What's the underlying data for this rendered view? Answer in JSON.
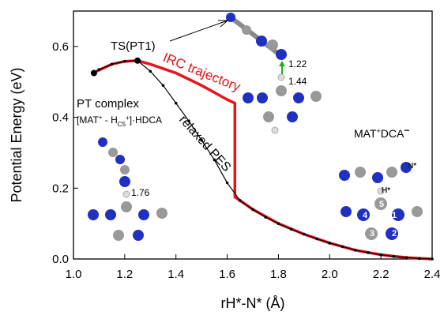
{
  "chart_data": {
    "type": "line",
    "x_label": "rH*-N* (Å)",
    "y_label": "Potential Energy (eV)",
    "xlim": [
      1.0,
      2.4
    ],
    "ylim": [
      0,
      0.7
    ],
    "xticks": [
      {
        "value": 1,
        "label": "1.0"
      },
      {
        "value": 1.2,
        "label": "1.2"
      },
      {
        "value": 1.4,
        "label": "1.4"
      },
      {
        "value": 1.6,
        "label": "1.6"
      },
      {
        "value": 1.8,
        "label": "1.8"
      },
      {
        "value": 2,
        "label": "2.0"
      },
      {
        "value": 2.2,
        "label": "2.2"
      },
      {
        "value": 2.4,
        "label": "2.4"
      }
    ],
    "yticks": [
      {
        "value": 0,
        "label": "0.0"
      },
      0.2,
      0.4,
      0.6
    ],
    "series": [
      {
        "name": "IRC trajectory",
        "color": "#e8141c",
        "markers": false,
        "x": [
          1.09,
          1.15,
          1.2,
          1.25,
          1.3,
          1.4,
          1.5,
          1.6,
          1.63,
          1.63,
          1.65,
          1.7,
          1.8,
          1.9,
          2.0,
          2.1,
          2.2,
          2.3,
          2.4
        ],
        "values": [
          0.53,
          0.55,
          0.558,
          0.56,
          0.55,
          0.525,
          0.49,
          0.45,
          0.44,
          0.175,
          0.165,
          0.14,
          0.1,
          0.07,
          0.045,
          0.025,
          0.012,
          0.004,
          0.0
        ]
      },
      {
        "name": "relaxed PES",
        "color": "#000000",
        "markers": true,
        "x": [
          1.08,
          1.1,
          1.15,
          1.2,
          1.25,
          1.3,
          1.35,
          1.4,
          1.45,
          1.5,
          1.55,
          1.6,
          1.65,
          1.7,
          1.75,
          1.8,
          1.85,
          1.9,
          1.95,
          2.0,
          2.05,
          2.1,
          2.15,
          2.2,
          2.25,
          2.3,
          2.35,
          2.4
        ],
        "values": [
          0.525,
          0.535,
          0.55,
          0.558,
          0.56,
          0.53,
          0.49,
          0.44,
          0.39,
          0.335,
          0.28,
          0.215,
          0.165,
          0.14,
          0.118,
          0.1,
          0.084,
          0.07,
          0.057,
          0.045,
          0.035,
          0.025,
          0.018,
          0.012,
          0.007,
          0.004,
          0.001,
          0.0
        ]
      }
    ],
    "annotations": {
      "ts": "TS(PT1)",
      "pt_complex": "PT complex",
      "pt_formula": [
        "[MAT",
        "+",
        " - H",
        "C5",
        "+",
        "]·HDCA"
      ],
      "mat_dca": [
        "MAT",
        "+",
        "DCA",
        "−"
      ],
      "bonds": [
        "1.22",
        "1.44",
        "1.76"
      ],
      "atoms": [
        "N*",
        "H*",
        "1",
        "2",
        "3",
        "4",
        "5"
      ]
    }
  }
}
